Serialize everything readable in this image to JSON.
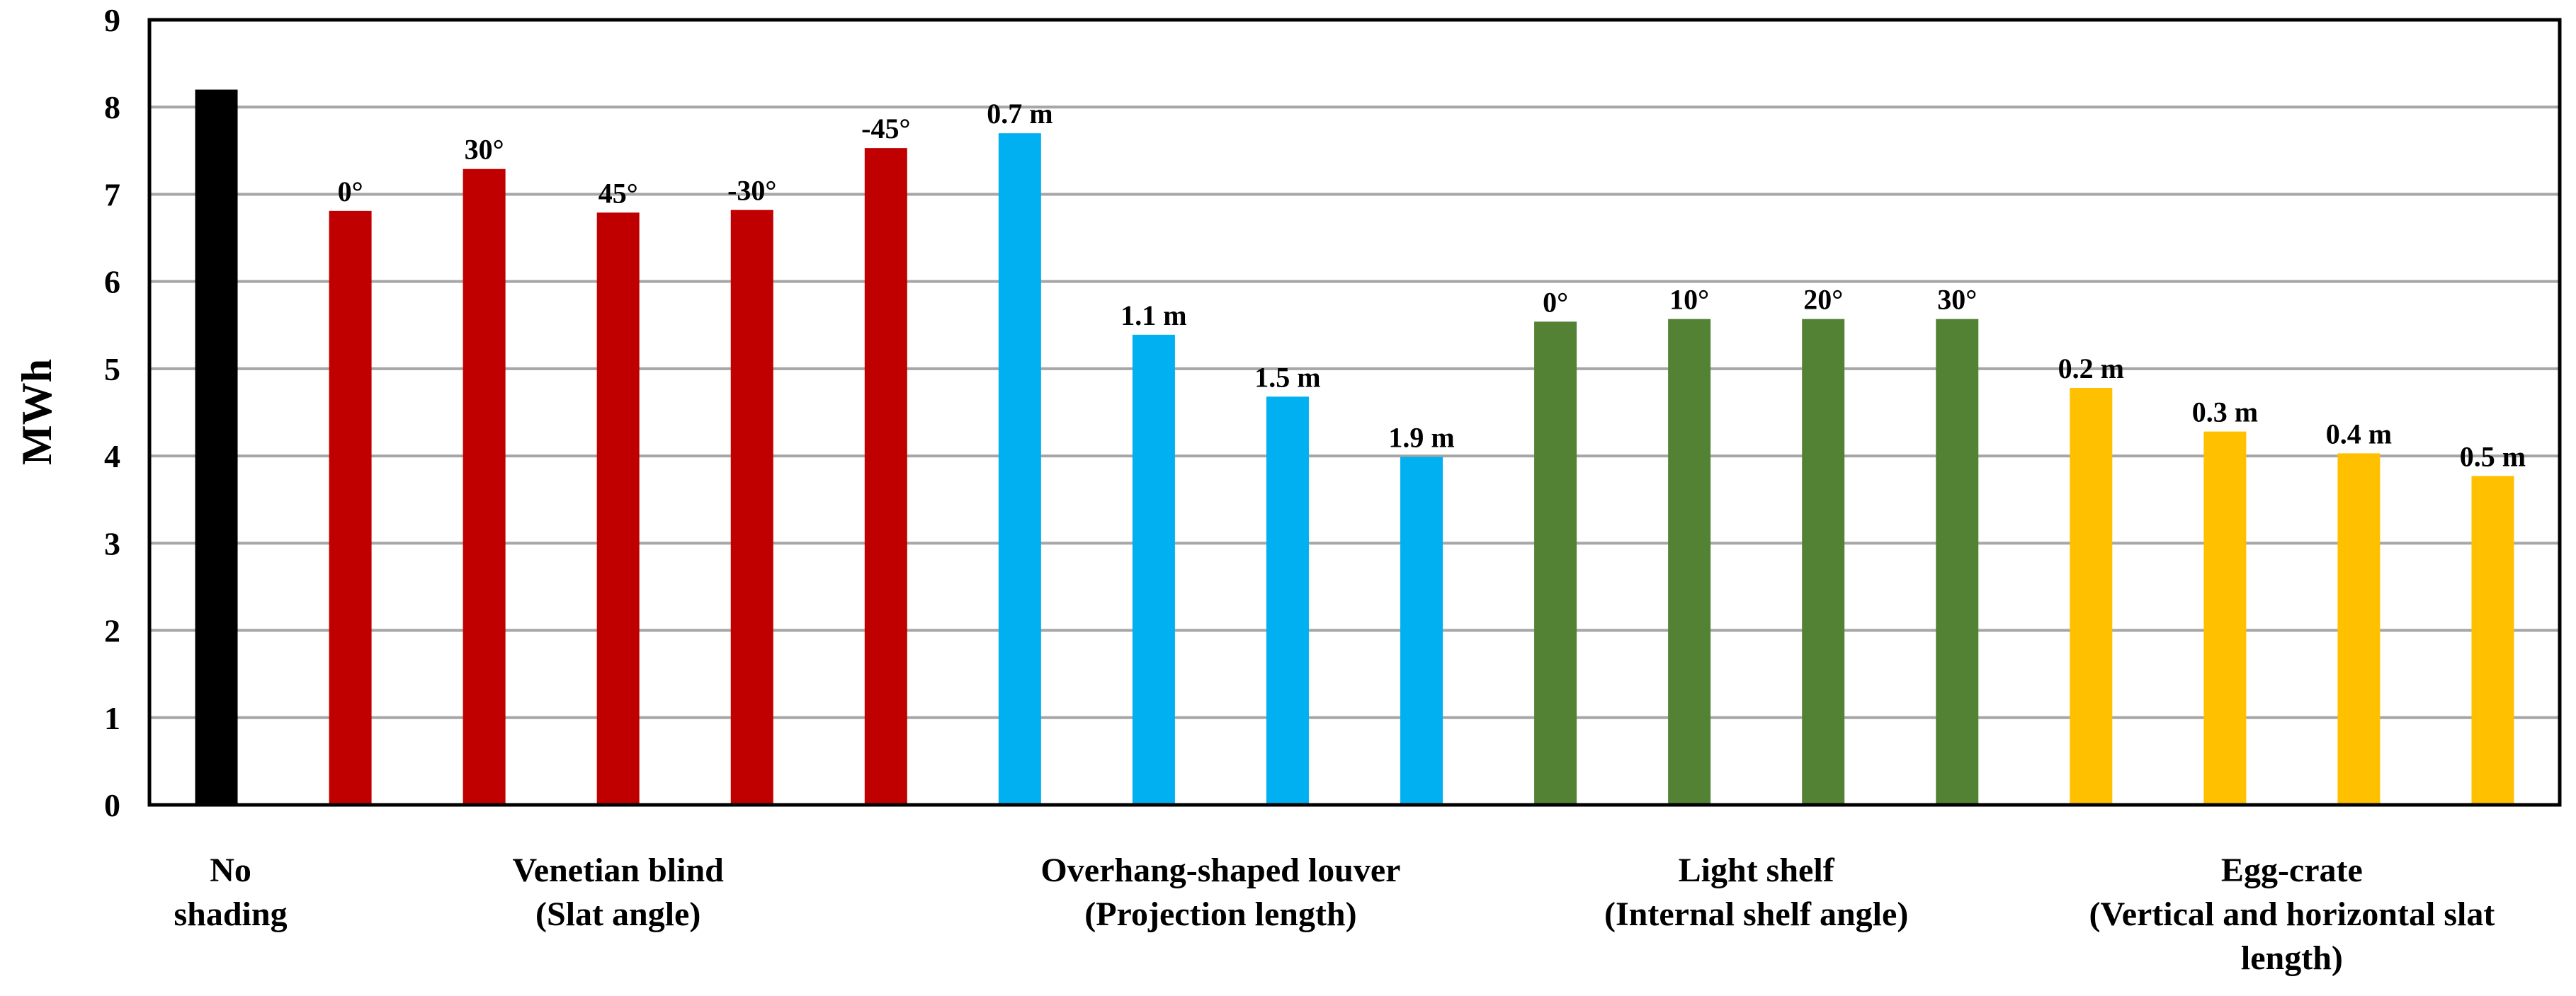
{
  "chart_data": {
    "type": "bar",
    "ylabel": "MWh",
    "ylim": [
      0,
      9
    ],
    "yticks": [
      "0",
      "1",
      "2",
      "3",
      "4",
      "5",
      "6",
      "7",
      "8",
      "9"
    ],
    "grid": true,
    "bars": [
      {
        "label": "",
        "value": 8.2,
        "group": 0
      },
      {
        "label": "0°",
        "value": 6.81,
        "group": 1
      },
      {
        "label": "30°",
        "value": 7.29,
        "group": 1
      },
      {
        "label": "45°",
        "value": 6.79,
        "group": 1
      },
      {
        "label": "-30°",
        "value": 6.82,
        "group": 1
      },
      {
        "label": "-45°",
        "value": 7.53,
        "group": 1
      },
      {
        "label": "0.7 m",
        "value": 7.7,
        "group": 2
      },
      {
        "label": "1.1 m",
        "value": 5.39,
        "group": 2
      },
      {
        "label": "1.5 m",
        "value": 4.68,
        "group": 2
      },
      {
        "label": "1.9 m",
        "value": 3.99,
        "group": 2
      },
      {
        "label": "0°",
        "value": 5.54,
        "group": 3
      },
      {
        "label": "10°",
        "value": 5.57,
        "group": 3
      },
      {
        "label": "20°",
        "value": 5.57,
        "group": 3
      },
      {
        "label": "30°",
        "value": 5.57,
        "group": 3
      },
      {
        "label": "0.2 m",
        "value": 4.78,
        "group": 4
      },
      {
        "label": "0.3 m",
        "value": 4.28,
        "group": 4
      },
      {
        "label": "0.4 m",
        "value": 4.03,
        "group": 4
      },
      {
        "label": "0.5 m",
        "value": 3.77,
        "group": 4
      }
    ],
    "groups": [
      {
        "lines": [
          "No",
          "shading"
        ],
        "color": "#000000"
      },
      {
        "lines": [
          "Venetian blind",
          "(Slat angle)"
        ],
        "color": "#C00000"
      },
      {
        "lines": [
          "Overhang-shaped louver",
          "(Projection length)"
        ],
        "color": "#00B0F0"
      },
      {
        "lines": [
          "Light shelf",
          "(Internal shelf angle)"
        ],
        "color": "#548235"
      },
      {
        "lines": [
          "Egg-crate",
          "(Vertical and horizontal slat",
          "length)"
        ],
        "color": "#FFC000"
      }
    ]
  }
}
